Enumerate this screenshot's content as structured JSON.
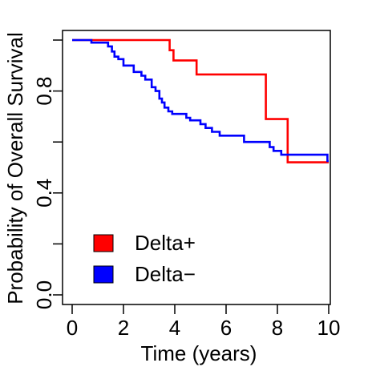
{
  "chart_data": {
    "type": "line",
    "step": true,
    "xlabel": "Time (years)",
    "ylabel": "Probability of Overall Survival",
    "xlim": [
      0,
      10
    ],
    "ylim": [
      0,
      1
    ],
    "x_ticks": [
      0,
      2,
      4,
      6,
      8,
      10
    ],
    "x_tick_labels": [
      "0",
      "2",
      "4",
      "6",
      "8",
      "10"
    ],
    "y_ticks": [
      0.0,
      0.4,
      0.8
    ],
    "y_tick_labels": [
      "0.0",
      "0.4",
      "0.8"
    ],
    "y_minor_ticks": [
      0.2,
      0.6,
      1.0
    ],
    "grid": false,
    "legend_position": "bottom-left",
    "series": [
      {
        "name": "Delta+",
        "color": "#ff0000",
        "points": [
          [
            0,
            1.0
          ],
          [
            3.8,
            1.0
          ],
          [
            3.8,
            0.96
          ],
          [
            3.95,
            0.96
          ],
          [
            3.95,
            0.92
          ],
          [
            4.85,
            0.92
          ],
          [
            4.85,
            0.865
          ],
          [
            7.55,
            0.865
          ],
          [
            7.55,
            0.69
          ],
          [
            8.4,
            0.69
          ],
          [
            8.4,
            0.52
          ],
          [
            10,
            0.52
          ]
        ]
      },
      {
        "name": "Delta−",
        "color": "#0000ff",
        "points": [
          [
            0,
            1.0
          ],
          [
            0.75,
            1.0
          ],
          [
            0.75,
            0.99
          ],
          [
            1.4,
            0.99
          ],
          [
            1.4,
            0.975
          ],
          [
            1.55,
            0.975
          ],
          [
            1.55,
            0.955
          ],
          [
            1.65,
            0.955
          ],
          [
            1.65,
            0.935
          ],
          [
            1.8,
            0.935
          ],
          [
            1.8,
            0.925
          ],
          [
            2.0,
            0.925
          ],
          [
            2.0,
            0.9
          ],
          [
            2.4,
            0.9
          ],
          [
            2.4,
            0.875
          ],
          [
            2.7,
            0.875
          ],
          [
            2.7,
            0.86
          ],
          [
            2.85,
            0.86
          ],
          [
            2.85,
            0.845
          ],
          [
            3.1,
            0.845
          ],
          [
            3.1,
            0.815
          ],
          [
            3.25,
            0.815
          ],
          [
            3.25,
            0.8
          ],
          [
            3.4,
            0.8
          ],
          [
            3.4,
            0.77
          ],
          [
            3.5,
            0.77
          ],
          [
            3.5,
            0.755
          ],
          [
            3.6,
            0.755
          ],
          [
            3.6,
            0.735
          ],
          [
            3.75,
            0.735
          ],
          [
            3.75,
            0.72
          ],
          [
            3.9,
            0.72
          ],
          [
            3.9,
            0.71
          ],
          [
            4.45,
            0.71
          ],
          [
            4.45,
            0.695
          ],
          [
            4.6,
            0.695
          ],
          [
            4.6,
            0.685
          ],
          [
            5.0,
            0.685
          ],
          [
            5.0,
            0.67
          ],
          [
            5.2,
            0.67
          ],
          [
            5.2,
            0.655
          ],
          [
            5.45,
            0.655
          ],
          [
            5.45,
            0.64
          ],
          [
            5.75,
            0.64
          ],
          [
            5.75,
            0.625
          ],
          [
            6.7,
            0.625
          ],
          [
            6.7,
            0.6
          ],
          [
            7.7,
            0.6
          ],
          [
            7.7,
            0.58
          ],
          [
            7.85,
            0.58
          ],
          [
            7.85,
            0.565
          ],
          [
            8.15,
            0.565
          ],
          [
            8.15,
            0.55
          ],
          [
            9.95,
            0.55
          ],
          [
            9.95,
            0.525
          ],
          [
            10,
            0.525
          ]
        ]
      }
    ]
  }
}
